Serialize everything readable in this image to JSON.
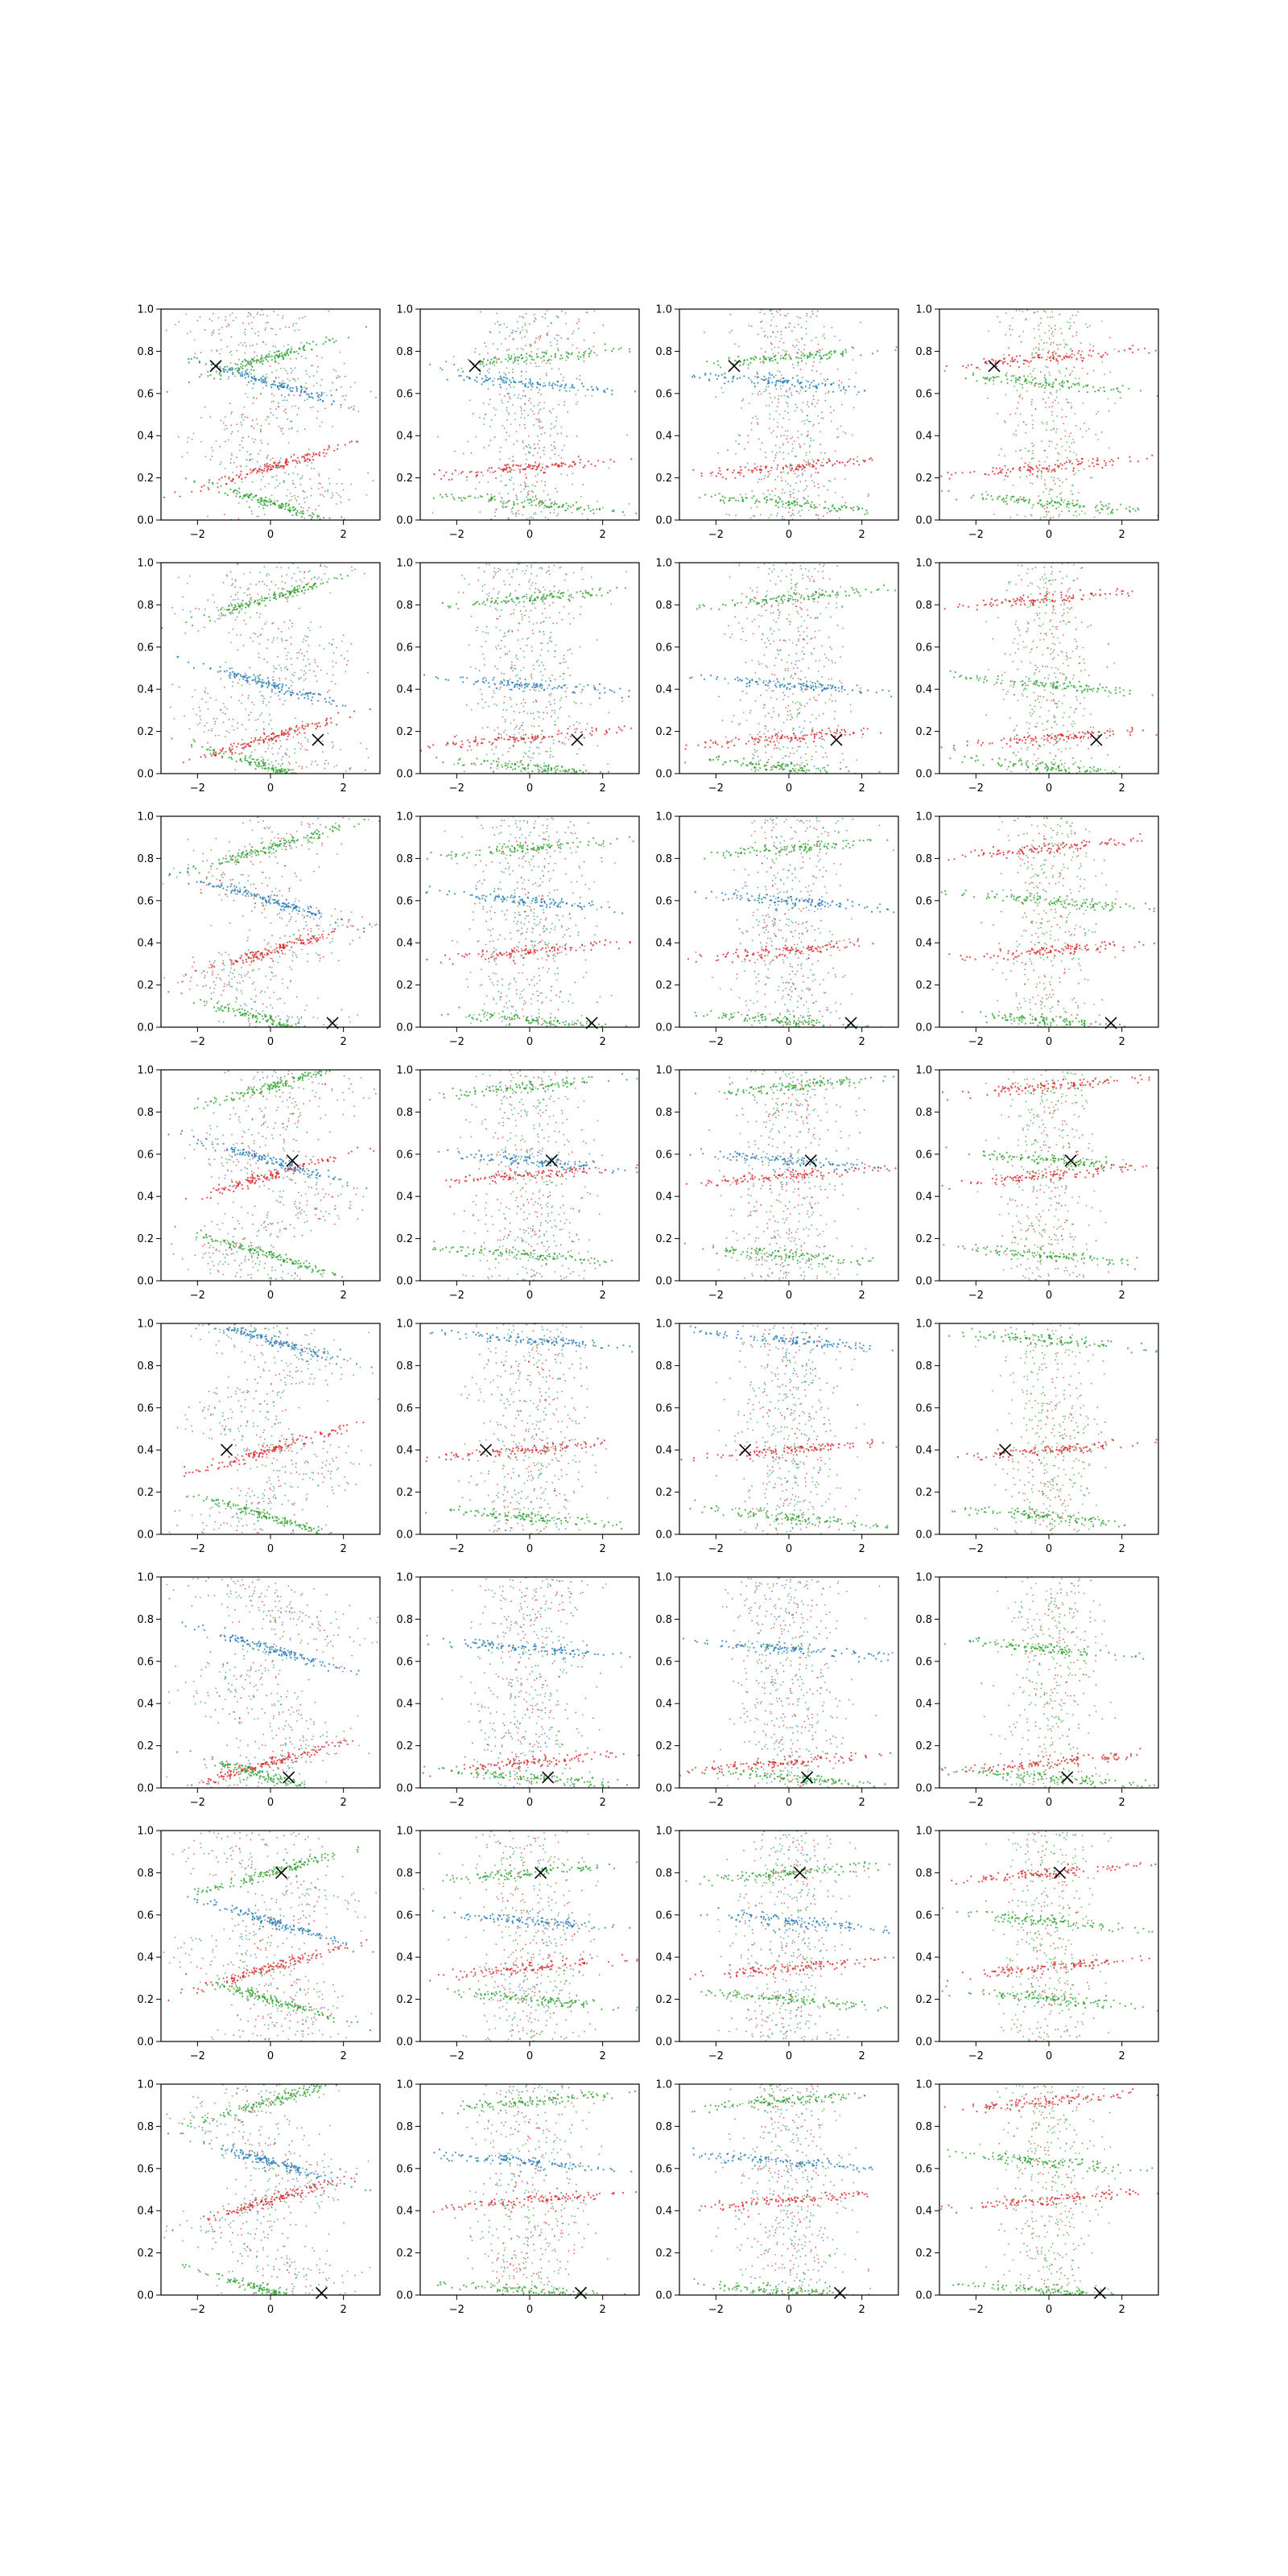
{
  "figure": {
    "rows": 8,
    "cols": 4,
    "background": "#ffffff",
    "marker_color": "#000000",
    "marker_symbol": "x",
    "series_colors": {
      "red": "#d62728",
      "green": "#2ca02c",
      "blue": "#1f77b4"
    }
  },
  "chart_data": {
    "type": "scatter",
    "layout": "grid 8x4",
    "xlim": [
      -3,
      3
    ],
    "ylim": [
      0,
      1
    ],
    "xticks": [
      -2,
      0,
      2
    ],
    "yticks": [
      0.0,
      0.2,
      0.4,
      0.6,
      0.8,
      1.0
    ],
    "xtick_labels": [
      "−2",
      "0",
      "2"
    ],
    "ytick_labels": [
      "0.0",
      "0.2",
      "0.4",
      "0.6",
      "0.8",
      "1.0"
    ],
    "grid": false,
    "legend": "none",
    "markers_per_row": [
      {
        "x": -1.5,
        "y": 0.73
      },
      {
        "x": 1.3,
        "y": 0.16
      },
      {
        "x": 1.7,
        "y": 0.02
      },
      {
        "x": 0.6,
        "y": 0.57
      },
      {
        "x": -1.2,
        "y": 0.4
      },
      {
        "x": 0.5,
        "y": 0.05
      },
      {
        "x": 0.3,
        "y": 0.8
      },
      {
        "x": 1.4,
        "y": 0.01
      }
    ],
    "band_levels_per_row": [
      [
        0.08,
        0.25,
        0.65,
        0.77
      ],
      [
        0.03,
        0.17,
        0.42,
        0.83
      ],
      [
        0.03,
        0.36,
        0.6,
        0.85
      ],
      [
        0.12,
        0.5,
        0.57,
        0.92
      ],
      [
        0.08,
        0.4,
        0.92
      ],
      [
        0.05,
        0.12,
        0.66
      ],
      [
        0.2,
        0.35,
        0.57,
        0.8
      ],
      [
        0.02,
        0.45,
        0.63,
        0.92
      ]
    ]
  }
}
